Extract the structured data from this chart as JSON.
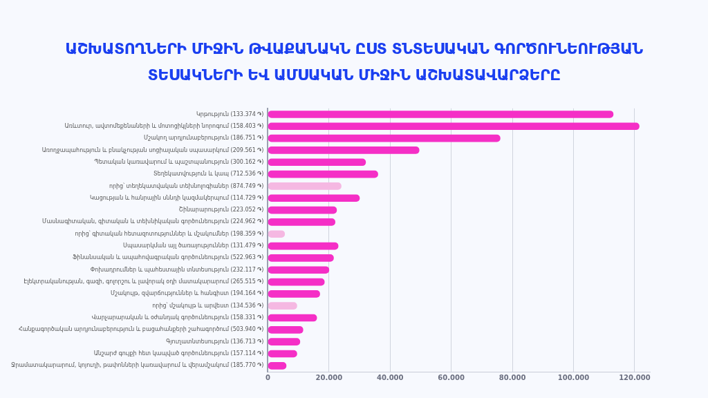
{
  "chart_data": {
    "type": "bar",
    "orientation": "horizontal",
    "title": "ԱՇԽԱՏՈՂՆԵՐԻ ՄԻՋԻՆ ԹՎԱՔԱՆԱԿՆ ԸՍՏ ՏՆՏԵՍԱԿԱՆ ԳՈՐԾՈՒՆԵՈՒԹՅԱՆ ՏԵՍԱԿՆԵՐԻ ԵՎ ԱՄՍԱԿԱՆ ՄԻՋԻՆ ԱՇԽԱՏԱՎԱՐՁԵՐԸ",
    "categories": [
      "Կրթություն (133.374 ֏)",
      "Առևտուր, ավտոմեքենաների և մոտոցիկլների նորոգում (158.403 ֏)",
      "Մշակող արդյունաբերություն (186.751 ֏)",
      "Առողջապահություն և բնակչության սոցիալական սպասարկում (209.561 ֏)",
      "Պետական կառավարում և պաշտպանություն (300.162 ֏)",
      "Տեղեկատվություն և կապ (712.536 ֏)",
      "որից՝ տեղեկատվական տեխնոլոգիաներ (874.749 ֏)",
      "Կացության և հանրային սննդի կազմակերպում (114.729 ֏)",
      "Շինարարություն (223.052 ֏)",
      "Մասնագիտական, գիտական և տեխնիկական գործունեություն (224.962 ֏)",
      "որից՝ գիտական հետազոտություններ և մշակումներ (198.359 ֏)",
      "Սպասարկման այլ ծառայություններ (131.479 ֏)",
      "Ֆինանսական և ապահովագրական գործունեություն (522.963 ֏)",
      "Փոխադրումներ և պահեստային տնտեսություն (232.117 ֏)",
      "Էլեկտրականության, գազի, գոլորշու և լավորակ օդի մատակարարում (265.515 ֏)",
      "Մշակույթ, զվարճություններ և հանգիստ (194.164 ֏)",
      "որից՝ մշակույթ և արվեստ (134.536 ֏)",
      "Վարչարարական և օժանդակ գործունեություն (158.331 ֏)",
      "Հանքագործական արդյունաբերություն և բացահանքերի շահագործում (503.940 ֏)",
      "Գյուղատնտեսություն (136.713 ֏)",
      "Անշարժ գույքի հետ կապված գործունեություն (157.114 ֏)",
      "Ջրամատակարարում, կոյուղի, թափոնների կառավարում և վերամշակում (185.770 ֏)"
    ],
    "values": [
      113000,
      121500,
      76000,
      49500,
      32000,
      36000,
      24000,
      30000,
      22500,
      22000,
      5500,
      23000,
      21500,
      20000,
      18500,
      17000,
      9500,
      16000,
      11500,
      10500,
      9500,
      6000
    ],
    "colors": [
      "#f52fc6",
      "#f52fc6",
      "#f52fc6",
      "#f52fc6",
      "#f52fc6",
      "#f52fc6",
      "#f5b8e2",
      "#f52fc6",
      "#f52fc6",
      "#f52fc6",
      "#f5b8e2",
      "#f52fc6",
      "#f52fc6",
      "#f52fc6",
      "#f52fc6",
      "#f52fc6",
      "#f5b8e2",
      "#f52fc6",
      "#f52fc6",
      "#f52fc6",
      "#f52fc6",
      "#f52fc6"
    ],
    "xlim": [
      0,
      125000
    ],
    "xticks": [
      0,
      {
        "value": 20000,
        "label": "20.000"
      },
      {
        "value": 40000,
        "label": "40.000"
      },
      {
        "value": 60000,
        "label": "60.000"
      },
      {
        "value": 80000,
        "label": "80.000"
      },
      {
        "value": 100000,
        "label": "100.000"
      },
      {
        "value": 120000,
        "label": "120.000"
      }
    ],
    "grid": "x"
  }
}
